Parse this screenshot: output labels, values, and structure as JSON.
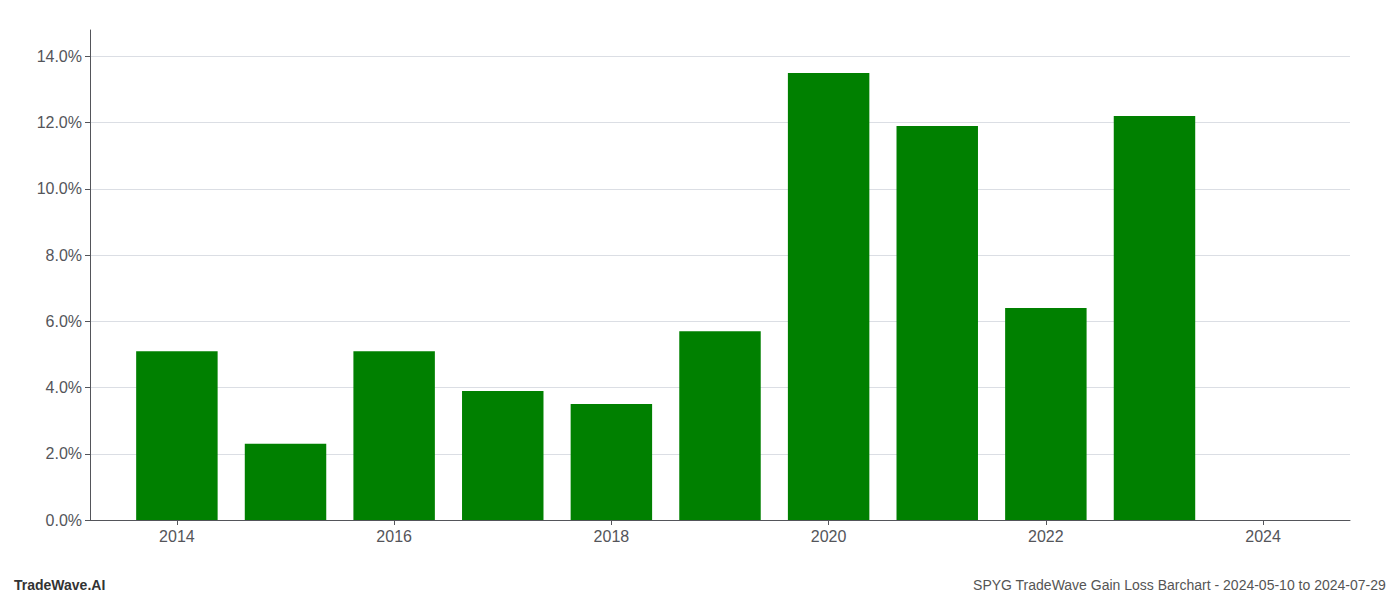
{
  "chart_data": {
    "type": "bar",
    "x": [
      2014,
      2015,
      2016,
      2017,
      2018,
      2019,
      2020,
      2021,
      2022,
      2023
    ],
    "values": [
      0.051,
      0.023,
      0.051,
      0.039,
      0.035,
      0.057,
      0.135,
      0.119,
      0.064,
      0.122
    ],
    "color": "#008000",
    "xlim": [
      2013.2,
      2024.8
    ],
    "xticks": [
      2014,
      2016,
      2018,
      2020,
      2022,
      2024
    ],
    "ylim": [
      0,
      0.148
    ],
    "yticks": [
      {
        "value": 0.0,
        "label": "0.0%"
      },
      {
        "value": 0.02,
        "label": "2.0%"
      },
      {
        "value": 0.04,
        "label": "4.0%"
      },
      {
        "value": 0.06,
        "label": "6.0%"
      },
      {
        "value": 0.08,
        "label": "8.0%"
      },
      {
        "value": 0.1,
        "label": "10.0%"
      },
      {
        "value": 0.12,
        "label": "12.0%"
      },
      {
        "value": 0.14,
        "label": "14.0%"
      }
    ],
    "grid": true,
    "annotations": [
      "TradeWave.AI",
      "SPYG TradeWave Gain Loss Barchart - 2024-05-10 to 2024-07-29"
    ]
  }
}
